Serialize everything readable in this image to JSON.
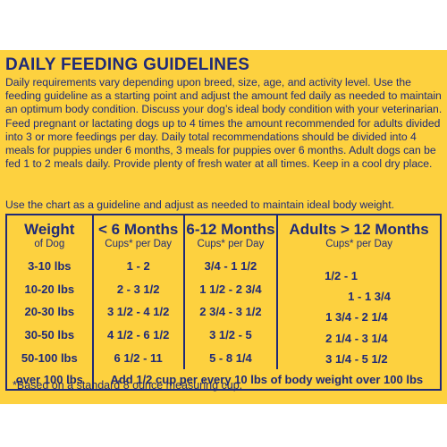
{
  "heading": "DAILY FEEDING GUIDELINES",
  "intro": "Daily requirements vary depending upon breed, size, age, and activity level. Use the feeding guideline as a starting point and adjust the amount fed daily as needed to maintain an optimum body condition. Discuss your dog’s ideal body condition with your veterinarian. Feed pregnant or lactating dogs up to 4 times the amount recommended for adults divided into 3 or more feedings per day. Daily total recommendations should be divided into 4 meals for puppies under 6 months, 3 meals for puppies over 6 months. Adult dogs can be fed 1 to 2 meals daily. Provide plenty of fresh water at all times. Keep in a cool dry place.",
  "guide_note": "Use the chart as a guideline and adjust as needed to maintain ideal body weight.",
  "table": {
    "headers": [
      {
        "main": "Weight",
        "sub": "of Dog"
      },
      {
        "main": "< 6 Months",
        "sub": "Cups* per Day"
      },
      {
        "main": "6-12 Months",
        "sub": "Cups* per Day"
      },
      {
        "main": "Adults > 12 Months",
        "sub": "Cups* per Day"
      }
    ],
    "rows": [
      {
        "weight": "3-10 lbs",
        "under6": "1 - 2",
        "m6to12": "3/4 - 1 1/2",
        "adult": "1/2 - 1"
      },
      {
        "weight": "10-20 lbs",
        "under6": "2 - 3 1/2",
        "m6to12": "1 1/2 - 2 3/4",
        "adult": "1 - 1 3/4"
      },
      {
        "weight": "20-30 lbs",
        "under6": "3 1/2 - 4 1/2",
        "m6to12": "2 3/4 - 3 1/2",
        "adult": "1 3/4 - 2 1/4"
      },
      {
        "weight": "30-50 lbs",
        "under6": "4 1/2 - 6 1/2",
        "m6to12": "3 1/2 - 5",
        "adult": "2 1/4 - 3 1/4"
      },
      {
        "weight": "50-100 lbs",
        "under6": "6 1/2 - 11",
        "m6to12": "5 - 8 1/4",
        "adult": "3 1/4 - 5 1/2"
      }
    ],
    "last_row": {
      "weight": "over 100 lbs",
      "note": "Add 1/2 cup per every 10 lbs of body weight over 100 lbs"
    }
  },
  "footnote": "*Based on a standard 8 ounce measuring cup.",
  "colors": {
    "panel": "#fdd13f",
    "text": "#1f2a78",
    "page": "#ffffff"
  }
}
